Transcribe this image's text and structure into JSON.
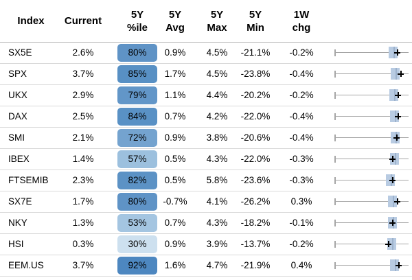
{
  "table": {
    "headers": [
      {
        "line1": "Index",
        "line2": ""
      },
      {
        "line1": "Current",
        "line2": ""
      },
      {
        "line1": "5Y",
        "line2": "%ile"
      },
      {
        "line1": "5Y",
        "line2": "Avg"
      },
      {
        "line1": "5Y",
        "line2": "Max"
      },
      {
        "line1": "5Y",
        "line2": "Min"
      },
      {
        "line1": "1W",
        "line2": "chg"
      }
    ],
    "rows": [
      {
        "index": "SX5E",
        "current": "2.6%",
        "percentile": "80%",
        "badge_color": "#5f93c6",
        "avg": "0.9%",
        "max": "4.5%",
        "min": "-21.1%",
        "chg": "-0.2%",
        "slider": {
          "box_pct": 79.6,
          "plus_pct": 84.3
        }
      },
      {
        "index": "SPX",
        "current": "3.7%",
        "percentile": "85%",
        "badge_color": "#5890c4",
        "avg": "1.7%",
        "max": "4.5%",
        "min": "-23.8%",
        "chg": "-0.4%",
        "slider": {
          "box_pct": 82.4,
          "plus_pct": 88.9
        }
      },
      {
        "index": "UKX",
        "current": "2.9%",
        "percentile": "79%",
        "badge_color": "#6296c8",
        "avg": "1.1%",
        "max": "4.4%",
        "min": "-20.2%",
        "chg": "-0.2%",
        "slider": {
          "box_pct": 80.1,
          "plus_pct": 86.1
        }
      },
      {
        "index": "DAX",
        "current": "2.5%",
        "percentile": "84%",
        "badge_color": "#5991c5",
        "avg": "0.7%",
        "max": "4.2%",
        "min": "-22.0%",
        "chg": "-0.4%",
        "slider": {
          "box_pct": 81.0,
          "plus_pct": 85.2
        }
      },
      {
        "index": "SMI",
        "current": "2.1%",
        "percentile": "72%",
        "badge_color": "#74a3cf",
        "avg": "0.9%",
        "max": "3.8%",
        "min": "-20.6%",
        "chg": "-0.4%",
        "slider": {
          "box_pct": 81.5,
          "plus_pct": 83.8
        }
      },
      {
        "index": "IBEX",
        "current": "1.4%",
        "percentile": "57%",
        "badge_color": "#9cc0de",
        "avg": "0.5%",
        "max": "4.3%",
        "min": "-22.0%",
        "chg": "-0.3%",
        "slider": {
          "box_pct": 80.6,
          "plus_pct": 78.7
        }
      },
      {
        "index": "FTSEMIB",
        "current": "2.3%",
        "percentile": "82%",
        "badge_color": "#5c92c5",
        "avg": "0.5%",
        "max": "5.8%",
        "min": "-23.6%",
        "chg": "-0.3%",
        "slider": {
          "box_pct": 75.5,
          "plus_pct": 78.7
        }
      },
      {
        "index": "SX7E",
        "current": "1.7%",
        "percentile": "80%",
        "badge_color": "#5f93c6",
        "avg": "-0.7%",
        "max": "4.1%",
        "min": "-26.2%",
        "chg": "0.3%",
        "slider": {
          "box_pct": 77.8,
          "plus_pct": 84.3
        }
      },
      {
        "index": "NKY",
        "current": "1.3%",
        "percentile": "53%",
        "badge_color": "#a4c5e1",
        "avg": "0.7%",
        "max": "4.3%",
        "min": "-18.2%",
        "chg": "-0.1%",
        "slider": {
          "box_pct": 78.7,
          "plus_pct": 77.8
        }
      },
      {
        "index": "HSI",
        "current": "0.3%",
        "percentile": "30%",
        "badge_color": "#cde0ef",
        "avg": "0.9%",
        "max": "3.9%",
        "min": "-13.7%",
        "chg": "-0.2%",
        "slider": {
          "box_pct": 76.9,
          "plus_pct": 73.1
        }
      },
      {
        "index": "EEM.US",
        "current": "3.7%",
        "percentile": "92%",
        "badge_color": "#4d87c0",
        "avg": "1.6%",
        "max": "4.7%",
        "min": "-21.9%",
        "chg": "0.4%",
        "slider": {
          "box_pct": 81.0,
          "plus_pct": 87.0
        }
      }
    ]
  },
  "colors": {
    "header_rule": "#b3b3b3",
    "row_rule": "#d9d9d9",
    "slider_track": "#a6a6a6",
    "slider_handle": "#b8cbe2",
    "plus_marker": "#000000"
  }
}
